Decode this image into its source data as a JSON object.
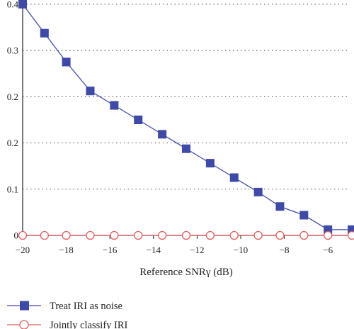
{
  "chart_data": {
    "type": "line",
    "xlabel": "Reference SNRγ (dB)",
    "x_ticks": [
      "−20",
      "−18",
      "−16",
      "−14",
      "−12",
      "−10",
      "−8",
      "−6"
    ],
    "x_tick_values": [
      -20,
      -18,
      -16,
      -14,
      -12,
      -10,
      -8,
      -6
    ],
    "y_ticks": [
      "0",
      "0.1",
      "0.2",
      "0.2",
      "0.3",
      "0.4"
    ],
    "xlim": [
      -20,
      -5
    ],
    "ylim": [
      0,
      0.4
    ],
    "grid": "horizontal-dotted",
    "legend_position": "bottom-left",
    "series": [
      {
        "name": "Treat IRI as noise",
        "color": "#3f4aa6",
        "marker": "square",
        "x": [
          -20,
          -19,
          -18,
          -16.9,
          -15.8,
          -14.7,
          -13.6,
          -12.5,
          -11.4,
          -10.3,
          -9.2,
          -8.2,
          -7.1,
          -6,
          -4.9
        ],
        "y": [
          0.4,
          0.35,
          0.3,
          0.25,
          0.225,
          0.2,
          0.175,
          0.15,
          0.125,
          0.1,
          0.075,
          0.05,
          0.035,
          0.01,
          0.01
        ]
      },
      {
        "name": "Jointly classify IRI",
        "color": "#e06060",
        "marker": "circle",
        "x": [
          -20,
          -19,
          -18,
          -16.9,
          -15.8,
          -14.7,
          -13.6,
          -12.5,
          -11.4,
          -10.3,
          -9.2,
          -8.2,
          -7.1,
          -6,
          -4.9
        ],
        "y": [
          0,
          0,
          0,
          0,
          0,
          0,
          0,
          0,
          0,
          0,
          0,
          0,
          0,
          0,
          0
        ]
      }
    ]
  }
}
